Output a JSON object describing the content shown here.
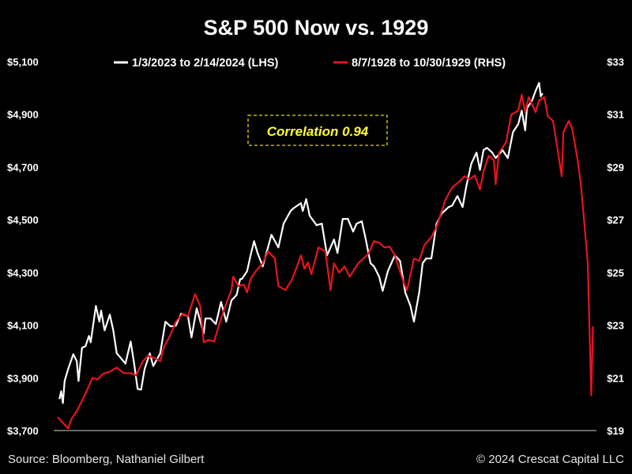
{
  "chart_data": {
    "type": "line",
    "title": "S&P 500 Now vs. 1929",
    "annotation": "Correlation 0.94",
    "source": "Source: Bloomberg, Nathaniel Gilbert",
    "copyright": "© 2024 Crescat Capital LLC",
    "grid": false,
    "legend_position": "top",
    "left_axis": {
      "ylim": [
        3700,
        5100
      ],
      "ticks": [
        3700,
        3900,
        4100,
        4300,
        4500,
        4700,
        4900,
        5100
      ],
      "tick_labels": [
        "$3,700",
        "$3,900",
        "$4,100",
        "$4,300",
        "$4,500",
        "$4,700",
        "$4,900",
        "$5,100"
      ]
    },
    "right_axis": {
      "ylim": [
        19,
        33
      ],
      "ticks": [
        19,
        21,
        23,
        25,
        27,
        29,
        31,
        33
      ],
      "tick_labels": [
        "$19",
        "$21",
        "$23",
        "$25",
        "$27",
        "$29",
        "$31",
        "$33"
      ]
    },
    "series": [
      {
        "name": "1/3/2023 to 2/14/2024 (LHS)",
        "axis": "left",
        "color": "#ffffff",
        "x": [
          1,
          2,
          3,
          4,
          6,
          9,
          11,
          12,
          14,
          16,
          18,
          19,
          22,
          24,
          25,
          27,
          30,
          32,
          34,
          36,
          39,
          42,
          44,
          46,
          48,
          50,
          53,
          55,
          59,
          62,
          65,
          68,
          71,
          75,
          77,
          80,
          84,
          85,
          88,
          91,
          94,
          97,
          100,
          103,
          105,
          106,
          109,
          111,
          113,
          115,
          118,
          123,
          127,
          130,
          134,
          136,
          140,
          141,
          143,
          145,
          149,
          152,
          155,
          159,
          161,
          164,
          167,
          170,
          172,
          175,
          177,
          180,
          182,
          185,
          187,
          190,
          194,
          197,
          200,
          203,
          205,
          208,
          210,
          212,
          215,
          218,
          221,
          225,
          227,
          230,
          233,
          235,
          238,
          241,
          243,
          245,
          247,
          250,
          252,
          256,
          259,
          262,
          265,
          267,
          269,
          270,
          273,
          275,
          277,
          278,
          279
        ],
        "values": [
          3819,
          3849,
          3804,
          3888,
          3933,
          3990,
          3963,
          3888,
          4014,
          4020,
          4059,
          4035,
          4173,
          4113,
          4155,
          4080,
          4140,
          4080,
          3993,
          3978,
          3954,
          4038,
          3954,
          3858,
          3855,
          3933,
          3993,
          3945,
          3993,
          4113,
          4095,
          4098,
          4143,
          4134,
          4053,
          4164,
          4068,
          4125,
          4125,
          4104,
          4188,
          4113,
          4194,
          4215,
          4275,
          4275,
          4305,
          4365,
          4419,
          4374,
          4323,
          4443,
          4395,
          4485,
          4533,
          4545,
          4563,
          4533,
          4578,
          4515,
          4479,
          4485,
          4365,
          4425,
          4374,
          4503,
          4503,
          4455,
          4485,
          4494,
          4434,
          4335,
          4323,
          4284,
          4230,
          4305,
          4365,
          4344,
          4224,
          4173,
          4113,
          4224,
          4335,
          4353,
          4353,
          4485,
          4524,
          4548,
          4554,
          4590,
          4548,
          4623,
          4713,
          4755,
          4689,
          4764,
          4773,
          4755,
          4734,
          4764,
          4734,
          4833,
          4863,
          4914,
          4839,
          4923,
          4953,
          4989,
          5019,
          4968,
          4980
        ]
      },
      {
        "name": "8/7/1928 to 10/30/1929 (RHS)",
        "axis": "right",
        "color": "#e8141c",
        "x": [
          0,
          1,
          3,
          6,
          8,
          11,
          14,
          17,
          20,
          23,
          26,
          30,
          34,
          38,
          42,
          45,
          49,
          52,
          56,
          59,
          61,
          65,
          68,
          72,
          75,
          79,
          82,
          84,
          87,
          90,
          93,
          96,
          100,
          101,
          104,
          107,
          109,
          111,
          114,
          118,
          121,
          125,
          127,
          131,
          135,
          140,
          142,
          144,
          146,
          150,
          154,
          157,
          159,
          162,
          165,
          168,
          173,
          176,
          179,
          182,
          185,
          188,
          191,
          194,
          196,
          199,
          201,
          203,
          205,
          208,
          211,
          215,
          218,
          221,
          223,
          227,
          231,
          234,
          237,
          240,
          243,
          245,
          248,
          251,
          252,
          254,
          258,
          261,
          265,
          267,
          269,
          271,
          275,
          277,
          280,
          282,
          285,
          287,
          290,
          291,
          294,
          296,
          299,
          301,
          302,
          304,
          305,
          307,
          308
        ],
        "values": [
          19.5,
          19.44,
          19.29,
          19.08,
          19.44,
          19.74,
          20.13,
          20.55,
          21.0,
          20.94,
          21.15,
          21.24,
          21.39,
          21.18,
          21.18,
          21.09,
          21.63,
          21.84,
          21.75,
          21.63,
          22.14,
          22.65,
          23.13,
          23.43,
          23.34,
          24.18,
          23.73,
          22.35,
          22.44,
          22.38,
          23.04,
          23.64,
          24.33,
          24.84,
          24.48,
          24.54,
          24.24,
          24.75,
          25.05,
          25.35,
          25.8,
          25.53,
          24.48,
          24.33,
          24.75,
          25.65,
          25.14,
          25.38,
          24.93,
          25.95,
          25.8,
          24.33,
          25.35,
          24.99,
          25.23,
          24.84,
          25.35,
          25.53,
          25.74,
          26.19,
          26.13,
          25.95,
          25.98,
          25.65,
          25.23,
          24.63,
          24.33,
          24.93,
          25.53,
          25.44,
          26.04,
          26.34,
          26.73,
          27.33,
          27.75,
          28.23,
          28.44,
          28.65,
          28.53,
          28.68,
          28.14,
          28.83,
          29.43,
          29.25,
          28.35,
          29.55,
          29.94,
          30.99,
          31.14,
          31.74,
          31.08,
          31.65,
          31.08,
          31.53,
          31.65,
          30.93,
          30.75,
          29.94,
          28.65,
          30.33,
          30.75,
          30.48,
          29.34,
          28.35,
          27.63,
          26.13,
          25.35,
          20.34,
          22.95
        ]
      }
    ]
  }
}
